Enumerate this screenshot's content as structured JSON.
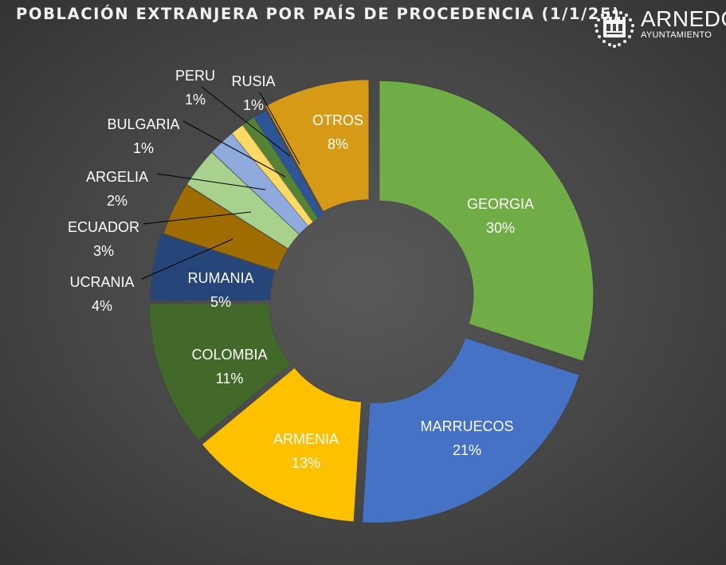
{
  "header": {
    "title": "POBLACIÓN EXTRANJERA POR PAÍS DE PROCEDENCIA (1/1/25)",
    "logo_main": "ARNEDO",
    "logo_sub": "AYUNTAMIENTO"
  },
  "chart_data": {
    "type": "pie",
    "subtype": "donut",
    "title": "POBLACIÓN EXTRANJERA POR PAÍS DE PROCEDENCIA (1/1/25)",
    "legend": "none",
    "slices": [
      {
        "name": "GEORGIA",
        "value": 30,
        "label": "30%",
        "color": "#70ad47"
      },
      {
        "name": "MARRUECOS",
        "value": 21,
        "label": "21%",
        "color": "#4472c4"
      },
      {
        "name": "ARMENIA",
        "value": 13,
        "label": "13%",
        "color": "#ffc000"
      },
      {
        "name": "COLOMBIA",
        "value": 11,
        "label": "11%",
        "color": "#43682b"
      },
      {
        "name": "RUMANIA",
        "value": 5,
        "label": "5%",
        "color": "#264478"
      },
      {
        "name": "UCRANIA",
        "value": 4,
        "label": "4%",
        "color": "#9e6c00"
      },
      {
        "name": "ECUADOR",
        "value": 3,
        "label": "3%",
        "color": "#a9d18e"
      },
      {
        "name": "ARGELIA",
        "value": 2,
        "label": "2%",
        "color": "#8faadc"
      },
      {
        "name": "BULGARIA",
        "value": 1,
        "label": "1%",
        "color": "#ffd966"
      },
      {
        "name": "PERU",
        "value": 1,
        "label": "1%",
        "color": "#548235"
      },
      {
        "name": "RUSIA",
        "value": 1,
        "label": "1%",
        "color": "#2f5597"
      },
      {
        "name": "OTROS",
        "value": 8,
        "label": "8%",
        "color": "#d69a14"
      }
    ]
  }
}
